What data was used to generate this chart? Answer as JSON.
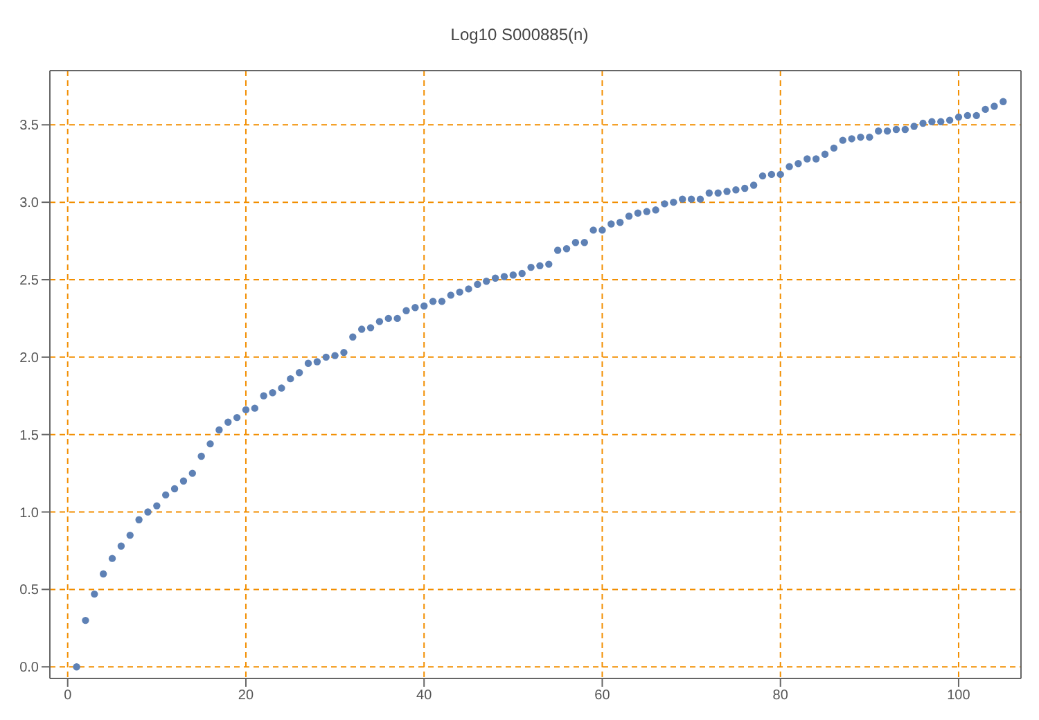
{
  "chart_data": {
    "type": "scatter",
    "title": "Log10 S000885(n)",
    "marker": "circle",
    "grid": true,
    "line_style": "dashed",
    "xlim": [
      -2,
      107
    ],
    "ylim": [
      -0.075,
      3.85
    ],
    "xticks": [
      0,
      20,
      40,
      60,
      80,
      100
    ],
    "yticks": [
      {
        "value": 0,
        "label": "0.0"
      },
      {
        "value": 0.5,
        "label": "0.5"
      },
      {
        "value": 1,
        "label": "1.0"
      },
      {
        "value": 1.5,
        "label": "1.5"
      },
      {
        "value": 2,
        "label": "2.0"
      },
      {
        "value": 2.5,
        "label": "2.5"
      },
      {
        "value": 3,
        "label": "3.0"
      },
      {
        "value": 3.5,
        "label": "3.5"
      }
    ],
    "x": [
      1,
      2,
      3,
      4,
      5,
      6,
      7,
      8,
      9,
      10,
      11,
      12,
      13,
      14,
      15,
      16,
      17,
      18,
      19,
      20,
      21,
      22,
      23,
      24,
      25,
      26,
      27,
      28,
      29,
      30,
      31,
      32,
      33,
      34,
      35,
      36,
      37,
      38,
      39,
      40,
      41,
      42,
      43,
      44,
      45,
      46,
      47,
      48,
      49,
      50,
      51,
      52,
      53,
      54,
      55,
      56,
      57,
      58,
      59,
      60,
      61,
      62,
      63,
      64,
      65,
      66,
      67,
      68,
      69,
      70,
      71,
      72,
      73,
      74,
      75,
      76,
      77,
      78,
      79,
      80,
      81,
      82,
      83,
      84,
      85,
      86,
      87,
      88,
      89,
      90,
      91,
      92,
      93,
      94,
      95,
      96,
      97,
      98,
      99,
      100,
      101,
      102,
      103,
      104,
      105
    ],
    "series": [
      {
        "color": "#5e81b5",
        "values": [
          0,
          0.3,
          0.47,
          0.6,
          0.7,
          0.78,
          0.85,
          0.95,
          1.0,
          1.04,
          1.11,
          1.15,
          1.2,
          1.25,
          1.36,
          1.44,
          1.53,
          1.58,
          1.61,
          1.66,
          1.67,
          1.75,
          1.77,
          1.8,
          1.86,
          1.9,
          1.96,
          1.97,
          2.0,
          2.01,
          2.03,
          2.13,
          2.18,
          2.19,
          2.23,
          2.25,
          2.25,
          2.3,
          2.32,
          2.33,
          2.36,
          2.36,
          2.4,
          2.42,
          2.44,
          2.47,
          2.49,
          2.51,
          2.52,
          2.53,
          2.54,
          2.58,
          2.59,
          2.6,
          2.69,
          2.7,
          2.74,
          2.74,
          2.82,
          2.82,
          2.86,
          2.87,
          2.91,
          2.93,
          2.94,
          2.95,
          2.99,
          3.0,
          3.02,
          3.02,
          3.02,
          3.06,
          3.06,
          3.07,
          3.08,
          3.09,
          3.11,
          3.17,
          3.18,
          3.18,
          3.23,
          3.25,
          3.28,
          3.28,
          3.31,
          3.35,
          3.4,
          3.41,
          3.42,
          3.42,
          3.46,
          3.46,
          3.47,
          3.47,
          3.49,
          3.51,
          3.52,
          3.52,
          3.53,
          3.55,
          3.56,
          3.56,
          3.6,
          3.62,
          3.65
        ]
      }
    ]
  }
}
